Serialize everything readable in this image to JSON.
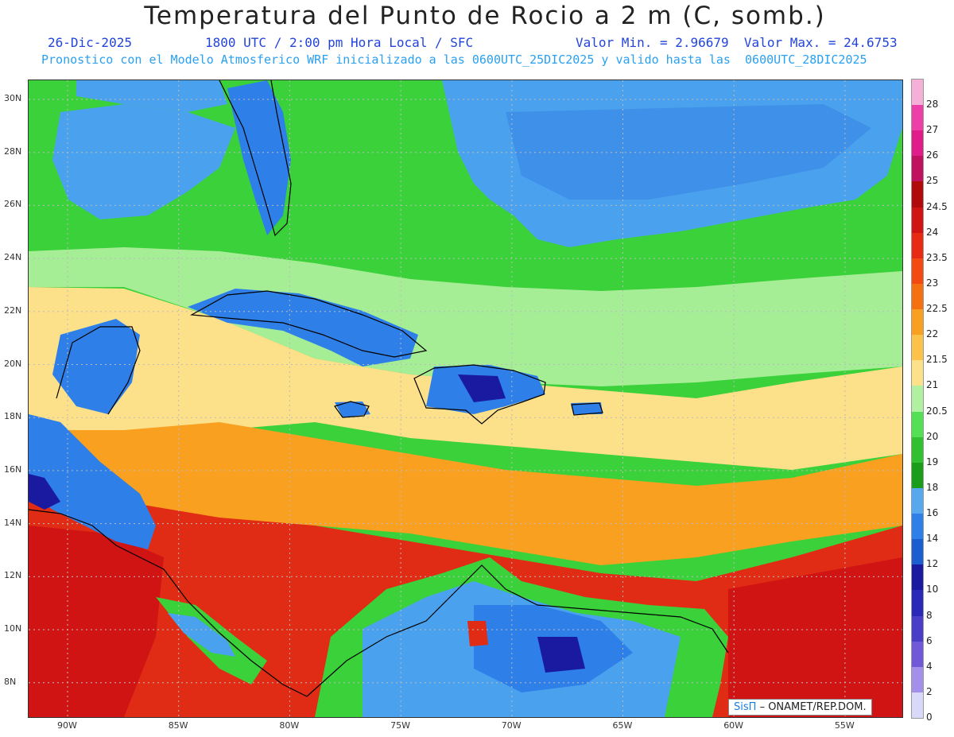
{
  "header": {
    "title": "Temperatura del Punto de Rocio a 2 m (C, somb.)",
    "date": "26-Dic-2025",
    "time": "1800 UTC / 2:00 pm Hora Local / SFC",
    "min_max": "Valor Min. = 2.96679  Valor Max. = 24.6753",
    "model_info": "Pronostico con el Modelo Atmosferico WRF inicializado a las 0600UTC_25DIC2025 y valido hasta las  0600UTC_28DIC2025"
  },
  "axes": {
    "lat_labels": [
      "30N",
      "28N",
      "26N",
      "24N",
      "22N",
      "20N",
      "18N",
      "16N",
      "14N",
      "12N",
      "10N",
      "8N"
    ],
    "lon_labels": [
      "90W",
      "85W",
      "80W",
      "75W",
      "70W",
      "65W",
      "60W",
      "55W"
    ]
  },
  "colorbar": {
    "labels": [
      "28",
      "27",
      "26",
      "25",
      "24.5",
      "24",
      "23.5",
      "23",
      "22.5",
      "22",
      "21.5",
      "21",
      "20.5",
      "20",
      "19",
      "18",
      "16",
      "14",
      "12",
      "10",
      "8",
      "6",
      "4",
      "2",
      "0"
    ],
    "colors": [
      "#f5b0d8",
      "#ee3fa8",
      "#e01c8a",
      "#c01060",
      "#b00a0a",
      "#d01414",
      "#e82a14",
      "#f24a10",
      "#f57010",
      "#f9a020",
      "#fcc24a",
      "#fde08a",
      "#b0f0a0",
      "#54e054",
      "#30c030",
      "#1a9e1a",
      "#58a8f0",
      "#2e80e8",
      "#1a5ed0",
      "#1a1aa0",
      "#2a28b8",
      "#4a3ec8",
      "#7058d8",
      "#a490ea",
      "#d8d8f8"
    ]
  },
  "credit": {
    "brand": "SisΠ",
    "text": "– ONAMET/REP.DOM."
  }
}
